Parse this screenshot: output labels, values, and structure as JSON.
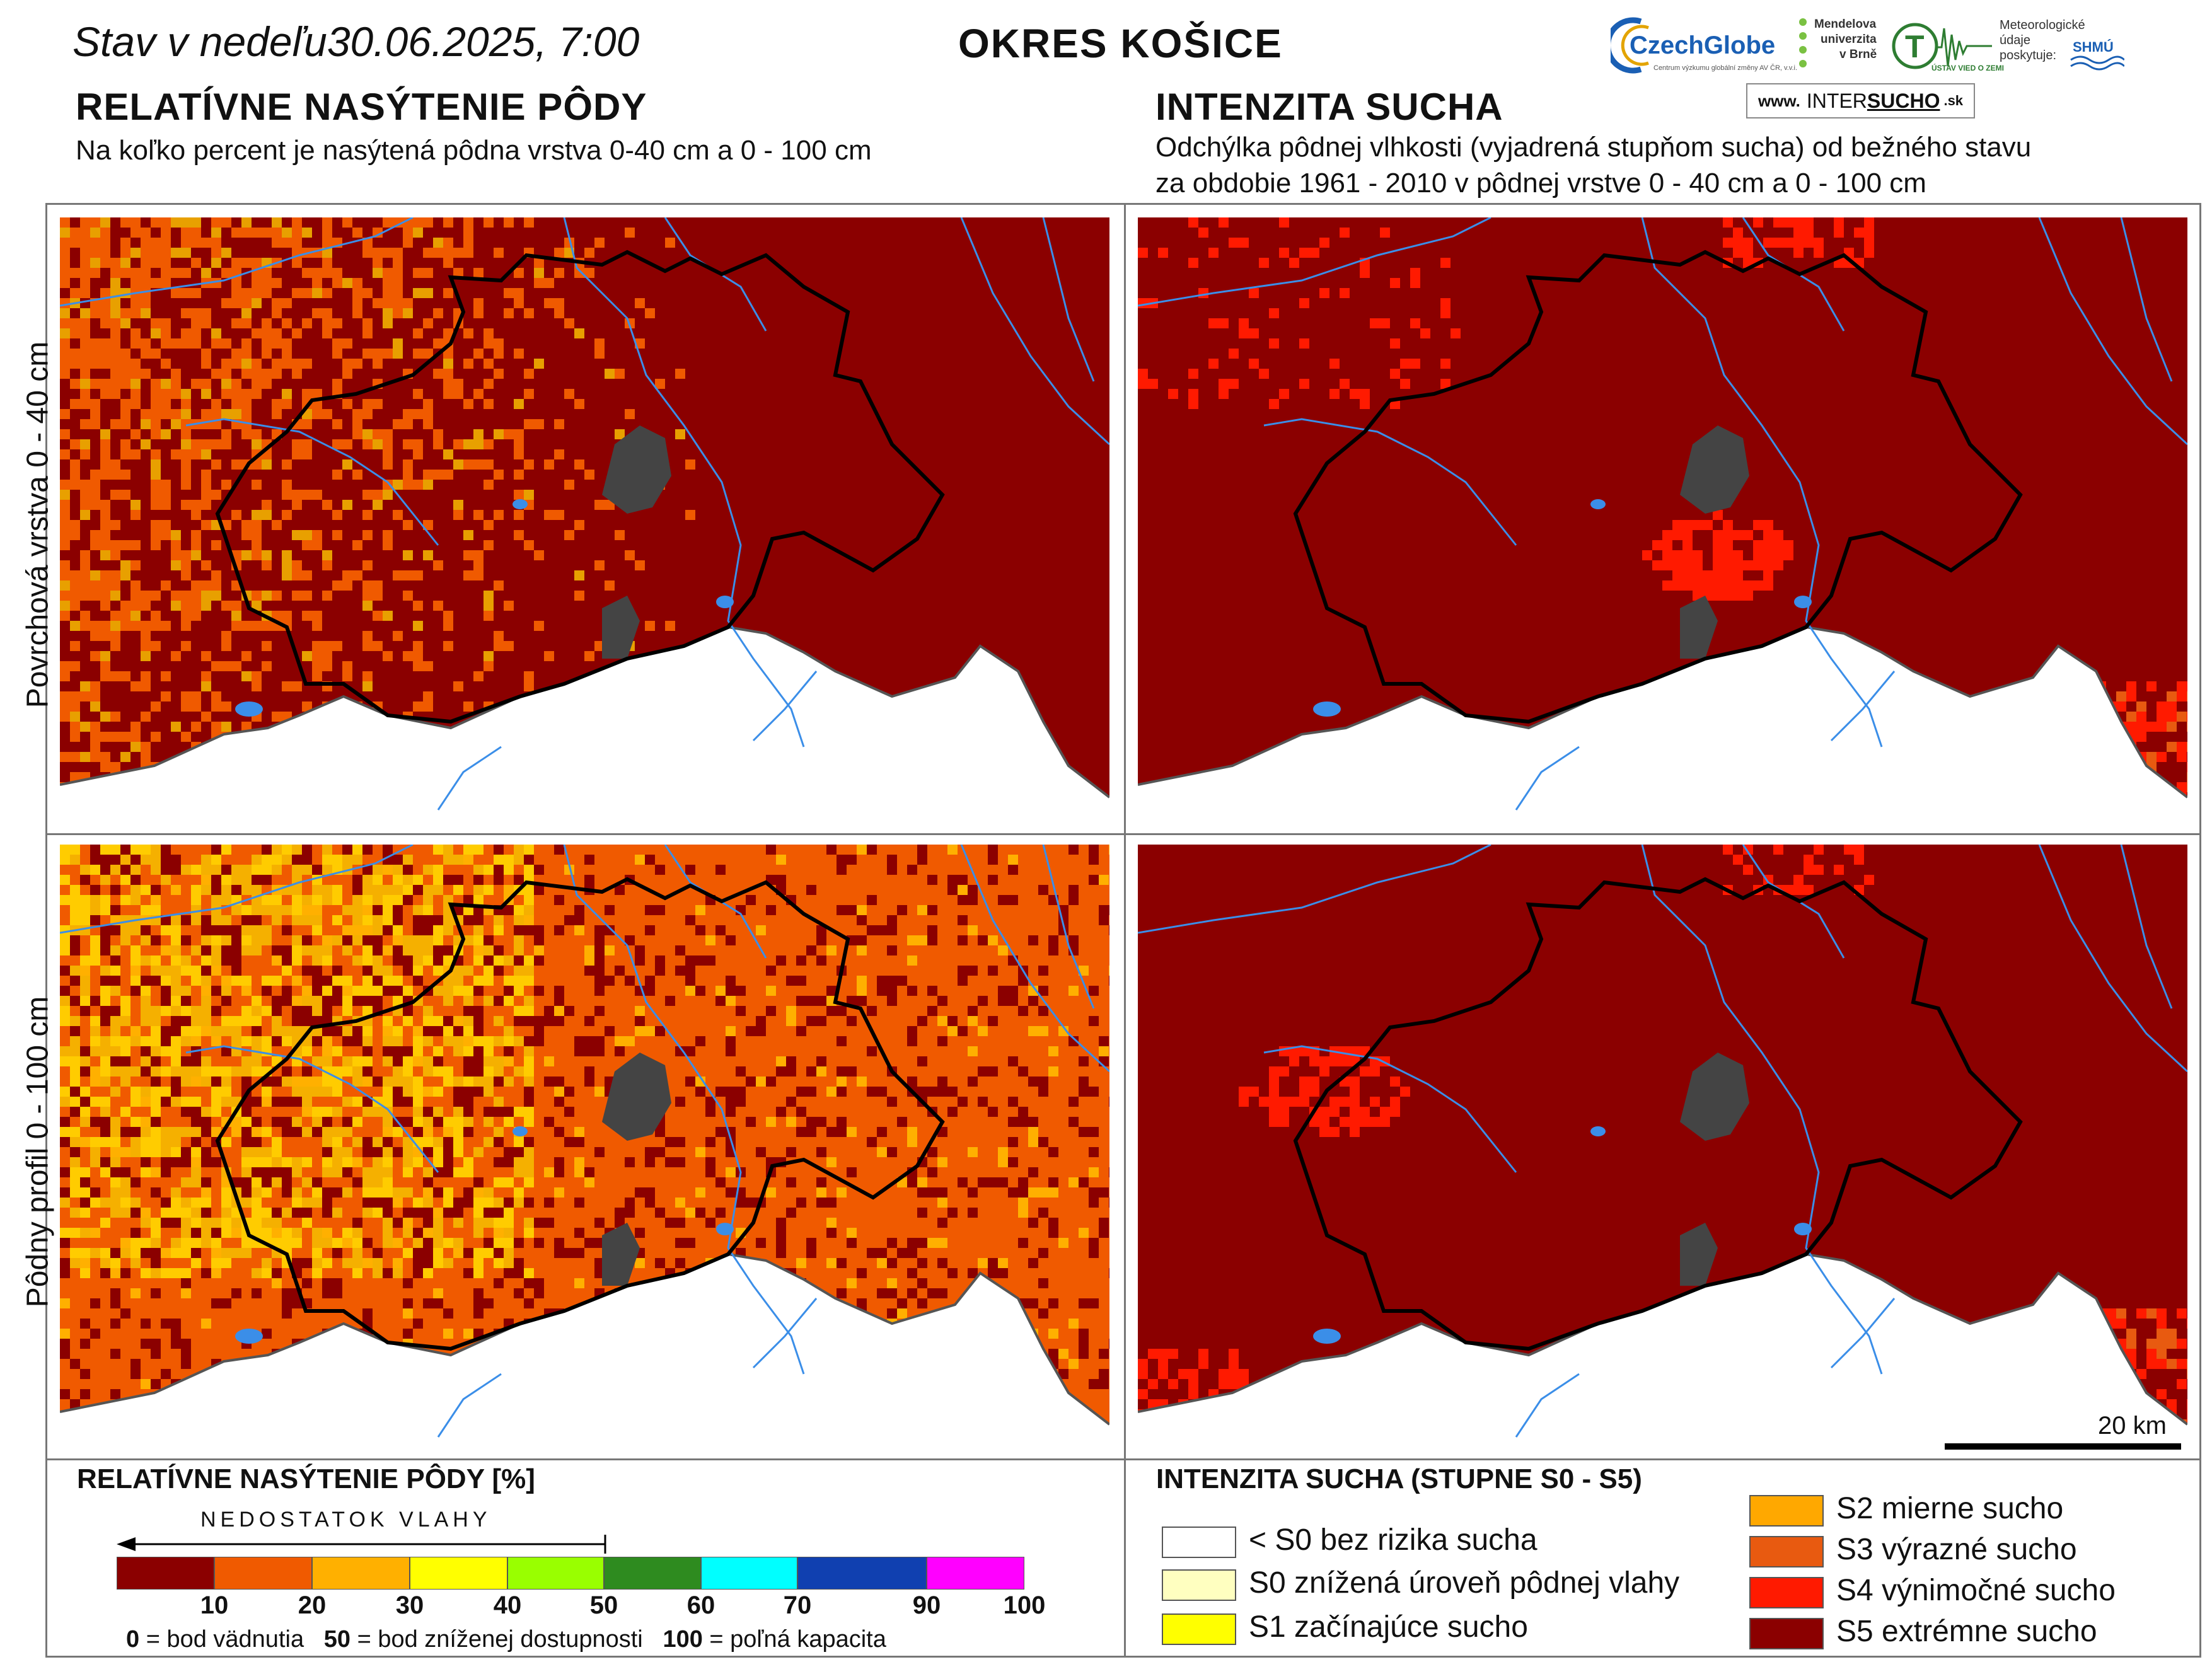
{
  "header": {
    "date_prefix": "Stav v nedeľu",
    "date_value": "30.06.2025, 7:00",
    "region": "OKRES KOŠICE"
  },
  "left_panel": {
    "title": "RELATÍVNE NASÝTENIE PÔDY",
    "subtitle": "Na koľko percent je nasýtená pôdna vrstva 0-40 cm a 0 - 100 cm"
  },
  "right_panel": {
    "title": "INTENZITA SUCHA",
    "subtitle_line1": "Odchýlka pôdnej vlhkosti (vyjadrená stupňom sucha) od bežného stavu",
    "subtitle_line2": "za obdobie 1961 - 2010 v pôdnej vrstve 0 - 40 cm a 0 - 100 cm"
  },
  "logos": {
    "czechglobe": "CzechGlobe",
    "czechglobe_sub": "Centrum výzkumu globální změny AV ČR, v.v.i.",
    "mendel": [
      "Mendelova",
      "univerzita",
      "v Brně"
    ],
    "uvgz": "ÚSTAV VIED O ZEMI",
    "meteo": [
      "Meteorologické",
      "údaje",
      "poskytuje:"
    ],
    "shmu": "SHMÚ",
    "intersucho_www": "www.",
    "intersucho_a": "INTER",
    "intersucho_b": "SUCHO",
    "intersucho_c": ".sk"
  },
  "row_labels": {
    "top": "Povrchová vrstva 0 - 40 cm",
    "bottom": "Pôdny profil 0 - 100 cm"
  },
  "legend_left": {
    "title": "RELATÍVNE NASÝTENIE PÔDY [%]",
    "arrow_label": "NEDOSTATOK VLAHY",
    "colors": [
      "#8b0000",
      "#f05a00",
      "#ffb000",
      "#ffff00",
      "#99ff00",
      "#2e8b1f",
      "#00ffff",
      "#1040b0",
      "#ff00ff"
    ],
    "ticks": [
      "10",
      "20",
      "30",
      "40",
      "50",
      "60",
      "70",
      "90",
      "100"
    ],
    "note_0": "0",
    "note_0_text": " = bod vädnutia   ",
    "note_50": "50",
    "note_50_text": " = bod zníženej dostupnosti   ",
    "note_100": "100",
    "note_100_text": " = poľná kapacita"
  },
  "legend_right": {
    "title": "INTENZITA SUCHA (STUPNE S0 - S5)",
    "items": [
      {
        "label": "< S0 bez rizika sucha",
        "color": "#ffffff"
      },
      {
        "label": "S0 znížená úroveň pôdnej vlahy",
        "color": "#ffffc0"
      },
      {
        "label": "S1 začínajúce sucho",
        "color": "#ffff00"
      },
      {
        "label": "S2 mierne sucho",
        "color": "#ffa800"
      },
      {
        "label": "S3 výrazné sucho",
        "color": "#e85a10"
      },
      {
        "label": "S4 výnimočné sucho",
        "color": "#ff1a00"
      },
      {
        "label": "S5 extrémne sucho",
        "color": "#8b0000"
      }
    ]
  },
  "scale": {
    "label": "20 km"
  },
  "colors": {
    "dark_red": "#8b0000",
    "orange": "#f05a00",
    "yellow": "#ffcc00",
    "river": "#3b8ee8",
    "city": "#444444"
  }
}
